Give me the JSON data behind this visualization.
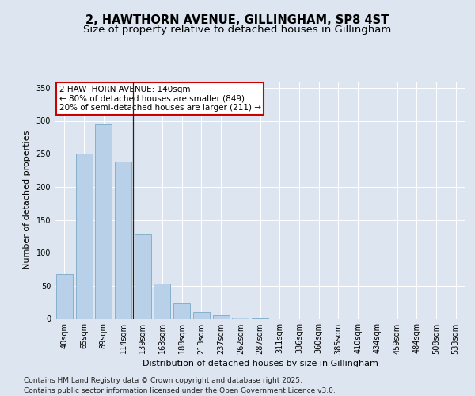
{
  "title_line1": "2, HAWTHORN AVENUE, GILLINGHAM, SP8 4ST",
  "title_line2": "Size of property relative to detached houses in Gillingham",
  "xlabel": "Distribution of detached houses by size in Gillingham",
  "ylabel": "Number of detached properties",
  "categories": [
    "40sqm",
    "65sqm",
    "89sqm",
    "114sqm",
    "139sqm",
    "163sqm",
    "188sqm",
    "213sqm",
    "237sqm",
    "262sqm",
    "287sqm",
    "311sqm",
    "336sqm",
    "360sqm",
    "385sqm",
    "410sqm",
    "434sqm",
    "459sqm",
    "484sqm",
    "508sqm",
    "533sqm"
  ],
  "values": [
    68,
    250,
    295,
    238,
    128,
    53,
    24,
    10,
    5,
    2,
    1,
    0,
    0,
    0,
    0,
    0,
    0,
    0,
    0,
    0,
    0
  ],
  "bar_color": "#b8d0e8",
  "bar_edge_color": "#7aaac8",
  "annotation_text": "2 HAWTHORN AVENUE: 140sqm\n← 80% of detached houses are smaller (849)\n20% of semi-detached houses are larger (211) →",
  "annotation_box_facecolor": "#ffffff",
  "annotation_box_edgecolor": "#cc0000",
  "ylim": [
    0,
    360
  ],
  "yticks": [
    0,
    50,
    100,
    150,
    200,
    250,
    300,
    350
  ],
  "background_color": "#dde6f0",
  "plot_bg_color": "#dde6f0",
  "footer_line1": "Contains HM Land Registry data © Crown copyright and database right 2025.",
  "footer_line2": "Contains public sector information licensed under the Open Government Licence v3.0.",
  "grid_color": "#ffffff",
  "title_fontsize": 10.5,
  "subtitle_fontsize": 9.5,
  "axis_label_fontsize": 8,
  "tick_fontsize": 7,
  "annotation_fontsize": 7.5,
  "footer_fontsize": 6.5,
  "vline_x": 3.5
}
